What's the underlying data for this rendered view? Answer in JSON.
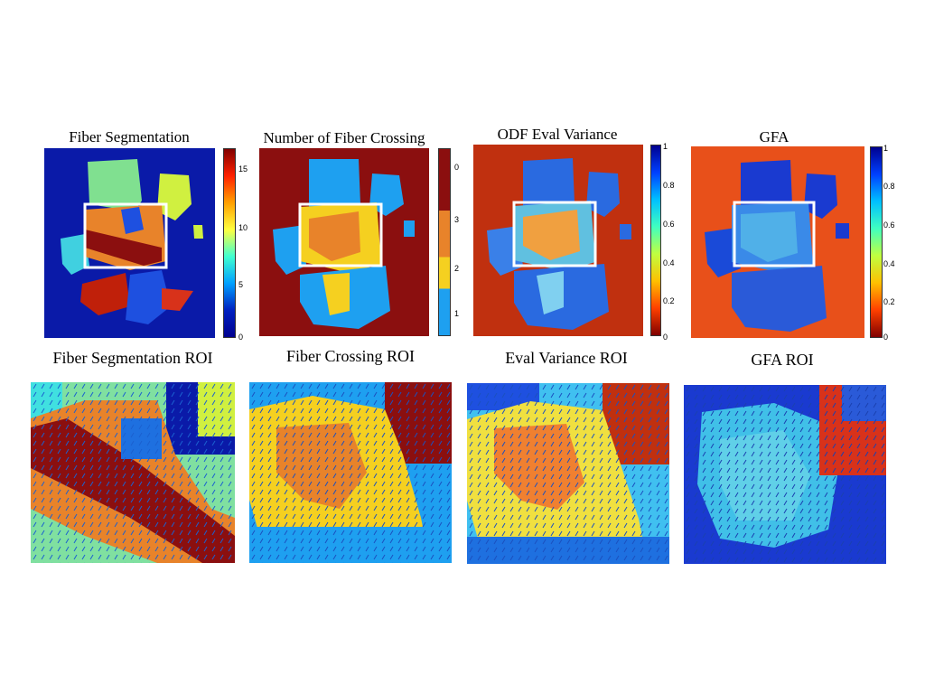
{
  "top_row": [
    {
      "title": "Fiber Segmentation",
      "colorbar_ticks": [
        "15",
        "10",
        "5",
        "0"
      ]
    },
    {
      "title": "Number of Fiber Crossing",
      "colorbar_ticks": [
        "0",
        "3",
        "2",
        "1"
      ]
    },
    {
      "title": "ODF Eval Variance",
      "colorbar_ticks": [
        "1",
        "0.8",
        "0.6",
        "0.4",
        "0.2",
        "0"
      ]
    },
    {
      "title": "GFA",
      "colorbar_ticks": [
        "1",
        "0.8",
        "0.6",
        "0.4",
        "0.2",
        "0"
      ]
    }
  ],
  "bottom_row": [
    {
      "title": "Fiber Segmentation ROI"
    },
    {
      "title": "Fiber Crossing ROI"
    },
    {
      "title": "Eval Variance ROI"
    },
    {
      "title": "GFA ROI"
    }
  ],
  "colors": {
    "dark_blue": "#0a1aa8",
    "dark_red": "#8b0f0f",
    "orange": "#e8832a",
    "yellow": "#f5d020",
    "light_blue": "#1ea0f0",
    "cyan": "#40e0e0",
    "green": "#80e090",
    "red": "#d8321a",
    "white": "#ffffff"
  }
}
